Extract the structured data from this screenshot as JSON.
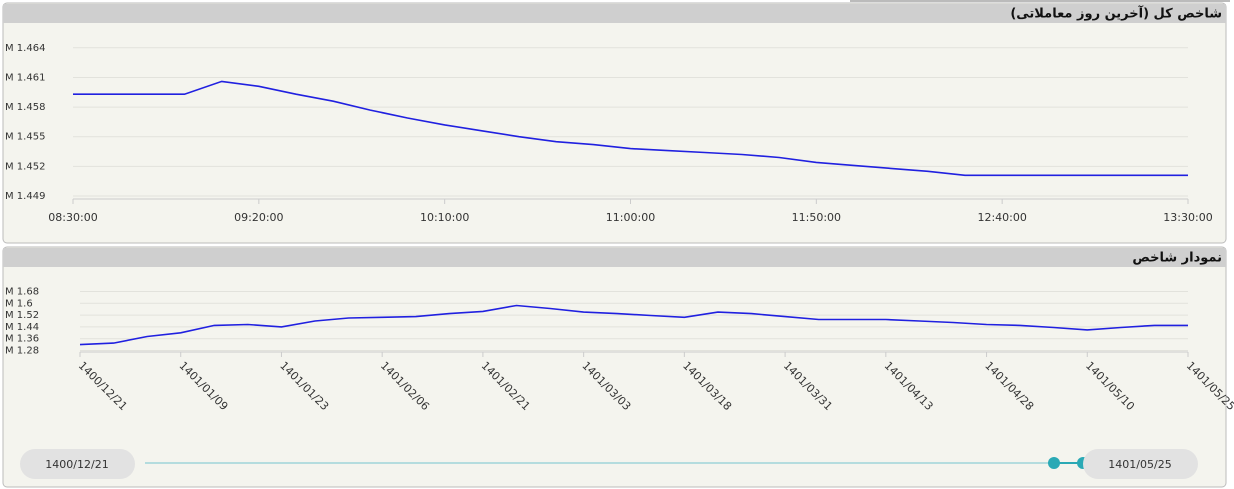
{
  "chart_data": [
    {
      "type": "line",
      "title": "شاخص کل (آخرین روز معاملاتی)",
      "color": "#2020e0",
      "grid": true,
      "categories": [
        "08:30:00",
        null,
        null,
        null,
        null,
        "09:20:00",
        null,
        null,
        null,
        null,
        "10:10:00",
        null,
        null,
        null,
        null,
        "11:00:00",
        null,
        null,
        null,
        null,
        "11:50:00",
        null,
        null,
        null,
        null,
        "12:40:00",
        null,
        null,
        null,
        null,
        "13:30:00"
      ],
      "values": [
        1.4593,
        1.4593,
        1.4593,
        1.4593,
        1.4606,
        1.4601,
        1.4593,
        1.4586,
        1.4577,
        1.4569,
        1.4562,
        1.4556,
        1.455,
        1.4545,
        1.4542,
        1.4538,
        1.4536,
        1.4534,
        1.4532,
        1.4529,
        1.4524,
        1.4521,
        1.4518,
        1.4515,
        1.4511,
        1.4511,
        1.4511,
        1.4511,
        1.4511,
        1.4511,
        1.4511
      ],
      "ylim": [
        1.4487,
        1.4658
      ],
      "yticks": [
        {
          "value": 1.449,
          "label": "M 1.449"
        },
        {
          "value": 1.452,
          "label": "M 1.452"
        },
        {
          "value": 1.455,
          "label": "M 1.455"
        },
        {
          "value": 1.458,
          "label": "M 1.458"
        },
        {
          "value": 1.461,
          "label": "M 1.461"
        },
        {
          "value": 1.464,
          "label": "M 1.464"
        }
      ]
    },
    {
      "type": "line",
      "title": "نمودار شاخص",
      "color": "#2020e0",
      "grid": true,
      "categories": [
        "1400/12/21",
        null,
        null,
        "1401/01/09",
        null,
        null,
        "1401/01/23",
        null,
        null,
        "1401/02/06",
        null,
        null,
        "1401/02/21",
        null,
        null,
        "1401/03/03",
        null,
        null,
        "1401/03/18",
        null,
        null,
        "1401/03/31",
        null,
        null,
        "1401/04/13",
        null,
        null,
        "1401/04/28",
        null,
        null,
        "1401/05/10",
        null,
        null,
        "1401/05/25"
      ],
      "values": [
        1.32,
        1.33,
        1.375,
        1.4,
        1.45,
        1.456,
        1.44,
        1.48,
        1.5,
        1.505,
        1.51,
        1.53,
        1.545,
        1.585,
        1.565,
        1.54,
        1.53,
        1.517,
        1.505,
        1.54,
        1.53,
        1.51,
        1.49,
        1.49,
        1.49,
        1.48,
        1.47,
        1.456,
        1.45,
        1.436,
        1.42,
        1.436,
        1.45,
        1.45
      ],
      "ylim": [
        1.27,
        1.69
      ],
      "yticks": [
        {
          "value": 1.28,
          "label": "M 1.28"
        },
        {
          "value": 1.36,
          "label": "M 1.36"
        },
        {
          "value": 1.44,
          "label": "M 1.44"
        },
        {
          "value": 1.52,
          "label": "M 1.52"
        },
        {
          "value": 1.6,
          "label": "M 1.6"
        },
        {
          "value": 1.68,
          "label": "M 1.68"
        }
      ]
    }
  ],
  "slider": {
    "start": "1400/12/21",
    "end": "1401/05/25"
  }
}
